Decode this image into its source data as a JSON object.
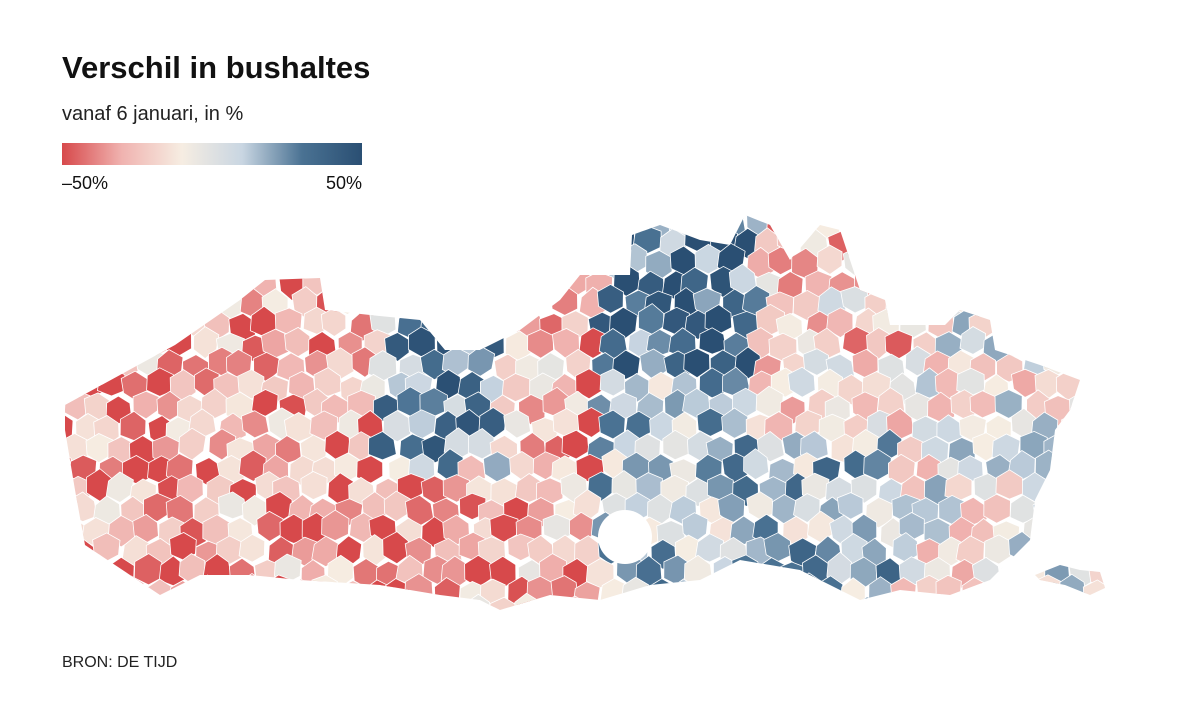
{
  "title": "Verschil in bushaltes",
  "subtitle": "vanaf 6 januari, in %",
  "legend": {
    "range": [
      -50,
      50
    ],
    "colors": [
      "#d7494b",
      "#f0b3b0",
      "#f6ede2",
      "#c9d6e2",
      "#4a7293",
      "#2a4f73"
    ],
    "ticks": [
      {
        "value": -50,
        "label": "–50%"
      },
      {
        "value": 50,
        "label": "50%"
      }
    ]
  },
  "source": "BRON: DE TIJD"
}
